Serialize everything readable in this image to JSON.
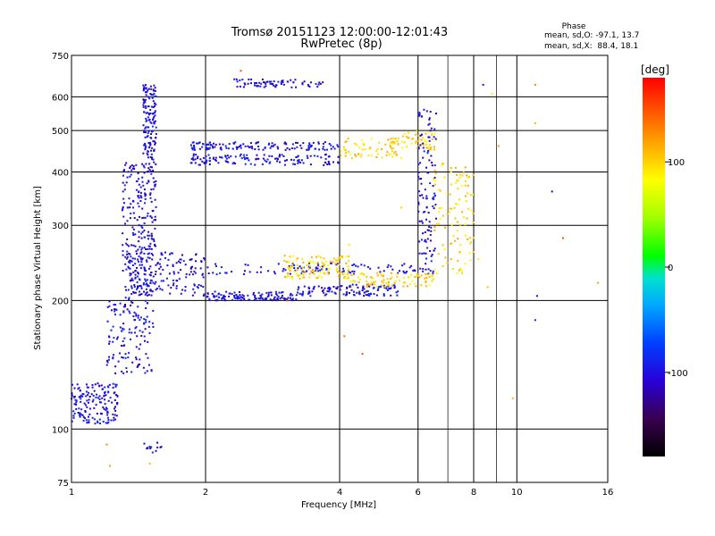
{
  "chart_data": {
    "type": "scatter",
    "title": "Tromsø 20151123 12:00:00-12:01:43",
    "subtitle": "RwPretec (8p)",
    "xlabel": "Frequency [MHz]",
    "ylabel": "Stationary phase Virtual Height [km]",
    "x_scale": "log",
    "y_scale": "log",
    "xlim": [
      1,
      16
    ],
    "ylim": [
      75,
      750
    ],
    "x_ticks": [
      1,
      2,
      4,
      6,
      8,
      10,
      16
    ],
    "x_minor_ticks": [
      7,
      9
    ],
    "y_ticks": [
      75,
      100,
      200,
      300,
      400,
      500,
      600,
      750
    ],
    "grid": true,
    "phase_stats": {
      "title": "Phase",
      "line1": "mean, sd,O: -97.1, 13.7",
      "line2": "mean, sd,X:  88.4, 18.1"
    },
    "colorbar": {
      "label": "[deg]",
      "range": [
        -180,
        180
      ],
      "ticks": [
        100,
        0,
        -100
      ]
    },
    "clusters": [
      {
        "x": [
          1.0,
          1.27
        ],
        "y": [
          103,
          128
        ],
        "phase": -100,
        "count": 160
      },
      {
        "x": [
          1.2,
          1.53
        ],
        "y": [
          135,
          200
        ],
        "phase": -100,
        "count": 130
      },
      {
        "x": [
          1.3,
          1.55
        ],
        "y": [
          200,
          420
        ],
        "phase": -100,
        "count": 260
      },
      {
        "x": [
          1.45,
          1.55
        ],
        "y": [
          400,
          640
        ],
        "phase": -100,
        "count": 150
      },
      {
        "x": [
          1.35,
          2.0
        ],
        "y": [
          205,
          260
        ],
        "phase": -100,
        "count": 140
      },
      {
        "x": [
          2.0,
          3.2
        ],
        "y": [
          200,
          210
        ],
        "phase": -100,
        "count": 120
      },
      {
        "x": [
          3.2,
          5.5
        ],
        "y": [
          205,
          218
        ],
        "phase": -100,
        "count": 120
      },
      {
        "x": [
          2.0,
          6.5
        ],
        "y": [
          230,
          245
        ],
        "phase": -100,
        "count": 110
      },
      {
        "x": [
          3.0,
          4.2
        ],
        "y": [
          225,
          255
        ],
        "phase": 100,
        "count": 120
      },
      {
        "x": [
          4.2,
          6.5
        ],
        "y": [
          215,
          232
        ],
        "phase": 100,
        "count": 90
      },
      {
        "x": [
          6.5,
          8.0
        ],
        "y": [
          230,
          420
        ],
        "phase": 100,
        "count": 110
      },
      {
        "x": [
          1.85,
          4.0
        ],
        "y": [
          415,
          440
        ],
        "phase": -100,
        "count": 130
      },
      {
        "x": [
          1.85,
          4.0
        ],
        "y": [
          450,
          470
        ],
        "phase": -100,
        "count": 130
      },
      {
        "x": [
          4.0,
          5.5
        ],
        "y": [
          430,
          480
        ],
        "phase": 100,
        "count": 70
      },
      {
        "x": [
          5.5,
          6.6
        ],
        "y": [
          450,
          500
        ],
        "phase": 100,
        "count": 50
      },
      {
        "x": [
          6.0,
          6.6
        ],
        "y": [
          240,
          560
        ],
        "phase": -100,
        "count": 110
      },
      {
        "x": [
          2.3,
          3.7
        ],
        "y": [
          630,
          660
        ],
        "phase": -100,
        "count": 70
      },
      {
        "x": [
          1.45,
          1.6
        ],
        "y": [
          88,
          93
        ],
        "phase": -100,
        "count": 14
      }
    ],
    "outliers": [
      {
        "x": 11.0,
        "y": 640,
        "phase": 130
      },
      {
        "x": 11.0,
        "y": 520,
        "phase": 110
      },
      {
        "x": 9.1,
        "y": 460,
        "phase": 120
      },
      {
        "x": 12.0,
        "y": 360,
        "phase": -110
      },
      {
        "x": 12.7,
        "y": 280,
        "phase": 150
      },
      {
        "x": 11.1,
        "y": 205,
        "phase": -100
      },
      {
        "x": 11.0,
        "y": 180,
        "phase": -90
      },
      {
        "x": 9.8,
        "y": 118,
        "phase": 110
      },
      {
        "x": 15.2,
        "y": 220,
        "phase": 120
      },
      {
        "x": 8.4,
        "y": 640,
        "phase": -100
      },
      {
        "x": 8.8,
        "y": 610,
        "phase": 90
      },
      {
        "x": 8.2,
        "y": 250,
        "phase": 90
      },
      {
        "x": 8.6,
        "y": 215,
        "phase": 110
      },
      {
        "x": 4.1,
        "y": 165,
        "phase": 140
      },
      {
        "x": 4.5,
        "y": 150,
        "phase": 150
      },
      {
        "x": 2.4,
        "y": 690,
        "phase": 150
      },
      {
        "x": 1.2,
        "y": 92,
        "phase": 130
      },
      {
        "x": 1.22,
        "y": 82,
        "phase": 120
      },
      {
        "x": 1.5,
        "y": 83,
        "phase": 110
      },
      {
        "x": 3.05,
        "y": 200,
        "phase": 150
      },
      {
        "x": 5.5,
        "y": 330,
        "phase": 100
      },
      {
        "x": 4.2,
        "y": 270,
        "phase": 90
      }
    ],
    "points": []
  }
}
